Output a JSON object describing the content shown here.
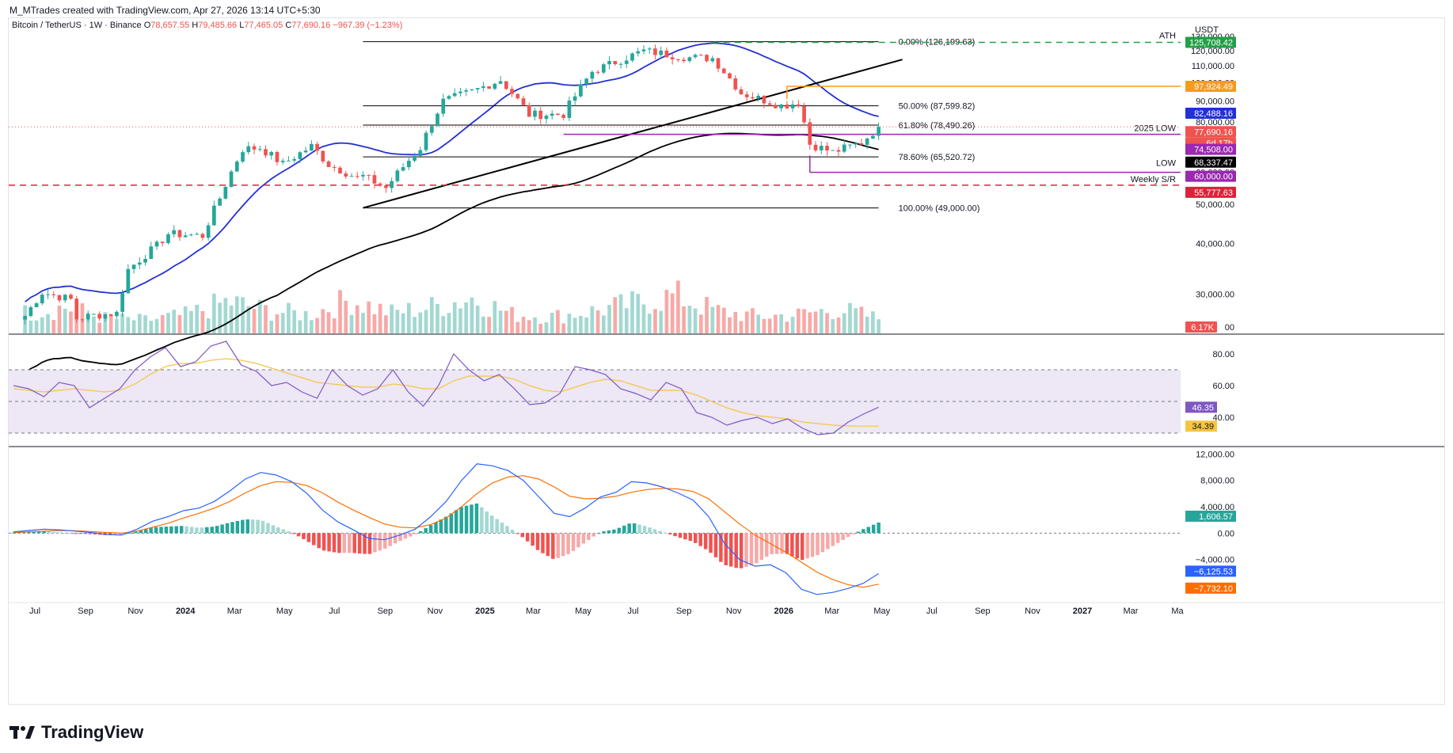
{
  "header": {
    "attribution": "M_MTrades created with TradingView.com, Apr 27, 2026 13:14 UTC+5:30"
  },
  "legend": {
    "symbol": "Bitcoin / TetherUS · 1W · Binance",
    "open_label": "O",
    "open": "78,657.55",
    "high_label": "H",
    "high": "79,485.66",
    "low_label": "L",
    "low": "77,465.05",
    "close_label": "C",
    "close": "77,690.16",
    "change": "−967.39 (−1.23%)"
  },
  "currency": "USDT",
  "footer": {
    "brand": "TradingView"
  },
  "colors": {
    "up": "#26a69a",
    "down": "#ef5350",
    "up_vol": "#a3d8d2",
    "down_vol": "#f7a9a7",
    "ma_blue": "#2330d6",
    "ma_black": "#000000",
    "fib_line": "#000000",
    "ath_line": "#22a046",
    "orange": "#f59c1a",
    "purple": "#9c27b0",
    "weekly_sr": "#e0203a",
    "rsi_line": "#7e57c2",
    "rsi_ma": "#f5c542",
    "rsi_band": "#ede7f6",
    "macd_line": "#2962ff",
    "signal_line": "#ff6d00"
  },
  "chart_data": [
    {
      "type": "candlestick",
      "title": "Bitcoin / TetherUS · 1W · Binance",
      "ylabel": "USDT",
      "y_scale": "log",
      "ylim": [
        24000,
        133000
      ],
      "x_range": [
        "2023-06",
        "2027-04"
      ],
      "x_ticks": [
        "Jul",
        "Sep",
        "Nov",
        "2024",
        "Mar",
        "May",
        "Jul",
        "Sep",
        "Nov",
        "2025",
        "Mar",
        "May",
        "Jul",
        "Sep",
        "Nov",
        "2026",
        "Mar",
        "May",
        "Jul",
        "Sep",
        "Nov",
        "2027",
        "Mar",
        "Ma"
      ],
      "y_ticks": [
        "30,000.00",
        "40,000.00",
        "50,000.00",
        "60,000.00",
        "70,000.00",
        "80,000.00",
        "90,000.00",
        "100,000.00",
        "110,000.00",
        "120,000.00",
        "130,000.00"
      ],
      "price_anchors": [
        {
          "date": "2023-06-19",
          "price": 26500
        },
        {
          "date": "2023-07-10",
          "price": 30300
        },
        {
          "date": "2023-08-14",
          "price": 29100
        },
        {
          "date": "2023-08-21",
          "price": 26100
        },
        {
          "date": "2023-09-11",
          "price": 26600
        },
        {
          "date": "2023-10-09",
          "price": 26900
        },
        {
          "date": "2023-10-23",
          "price": 34500
        },
        {
          "date": "2023-11-27",
          "price": 39500
        },
        {
          "date": "2023-12-11",
          "price": 42300
        },
        {
          "date": "2024-01-22",
          "price": 41800
        },
        {
          "date": "2024-02-12",
          "price": 51800
        },
        {
          "date": "2024-03-11",
          "price": 68500
        },
        {
          "date": "2024-04-01",
          "price": 69000
        },
        {
          "date": "2024-04-29",
          "price": 62900
        },
        {
          "date": "2024-06-03",
          "price": 69600
        },
        {
          "date": "2024-06-24",
          "price": 62700
        },
        {
          "date": "2024-07-29",
          "price": 58100
        },
        {
          "date": "2024-08-05",
          "price": 58700
        },
        {
          "date": "2024-09-02",
          "price": 54900
        },
        {
          "date": "2024-10-14",
          "price": 69000
        },
        {
          "date": "2024-11-11",
          "price": 90000
        },
        {
          "date": "2024-12-16",
          "price": 95000
        },
        {
          "date": "2025-01-20",
          "price": 101500
        },
        {
          "date": "2025-02-24",
          "price": 83300
        },
        {
          "date": "2025-04-07",
          "price": 83500
        },
        {
          "date": "2025-05-12",
          "price": 106400
        },
        {
          "date": "2025-07-14",
          "price": 119800
        },
        {
          "date": "2025-08-11",
          "price": 117400
        },
        {
          "date": "2025-09-08",
          "price": 115300
        },
        {
          "date": "2025-10-06",
          "price": 114900
        },
        {
          "date": "2025-11-10",
          "price": 94200
        },
        {
          "date": "2025-12-29",
          "price": 87700
        },
        {
          "date": "2026-01-19",
          "price": 89200
        },
        {
          "date": "2026-02-02",
          "price": 70500
        },
        {
          "date": "2026-03-02",
          "price": 67300
        },
        {
          "date": "2026-04-06",
          "price": 71000
        },
        {
          "date": "2026-04-27",
          "price": 77690
        }
      ],
      "volume_anchors": [
        0.55,
        0.7,
        0.4,
        0.35,
        0.5,
        0.85,
        0.6,
        0.5,
        0.9,
        0.55,
        0.7,
        0.95,
        0.5,
        0.45,
        0.6,
        0.8,
        1.0,
        0.6,
        0.45,
        0.5,
        0.65,
        0.4
      ],
      "moving_averages": [
        {
          "label": "",
          "value_at_end": 82488.16,
          "color": "#2330d6"
        },
        {
          "label": "",
          "value_at_end": 68337.47,
          "color": "#000000"
        }
      ],
      "fibonacci": [
        {
          "label": "0.00% (126,199.63)",
          "price": 126199.63
        },
        {
          "label": "50.00% (87,599.82)",
          "price": 87599.82
        },
        {
          "label": "61.80% (78,490.26)",
          "price": 78490.26
        },
        {
          "label": "78.60% (65,520.72)",
          "price": 65520.72
        },
        {
          "label": "100.00% (49,000.00)",
          "price": 49000.0
        }
      ],
      "annotations": [
        {
          "label": "ATH",
          "price": 125708.42,
          "tag": "125,708.42"
        },
        {
          "label": "",
          "price": 97924.49,
          "tag": "97,924.49"
        },
        {
          "label": "2025 LOW",
          "price": 74508.0,
          "tag": "74,508.00"
        },
        {
          "label": "LOW",
          "price": 60000.0,
          "tag": "60,000.00"
        },
        {
          "label": "Weekly S/R",
          "price": 55777.63,
          "tag": "55,777.63"
        }
      ],
      "last_price_tag": "77,690.16",
      "countdown": "6d 17h",
      "volume_tag": "6.17K",
      "ma_tags": [
        "82,488.16",
        "68,337.47"
      ],
      "axis_zero_label": "00"
    },
    {
      "type": "line",
      "title": "",
      "ylim": [
        22,
        92
      ],
      "y_ticks": [
        "80.00",
        "60.00",
        "40.00"
      ],
      "upper_band": 70,
      "lower_band": 30,
      "mid_line": 50,
      "rsi_anchors": [
        60,
        58,
        53,
        62,
        60,
        46,
        52,
        58,
        70,
        78,
        84,
        72,
        75,
        85,
        88,
        73,
        69,
        60,
        62,
        56,
        52,
        70,
        60,
        54,
        58,
        70,
        56,
        47,
        60,
        80,
        70,
        63,
        67,
        58,
        48,
        49,
        55,
        72,
        70,
        67,
        58,
        55,
        51,
        62,
        58,
        43,
        40,
        35,
        38,
        40,
        36,
        39,
        33,
        29,
        30,
        37,
        42,
        46.35
      ],
      "rsi_ma_anchors": [
        58,
        57,
        56,
        57,
        58,
        57,
        56,
        57,
        61,
        67,
        72,
        74,
        74,
        76,
        77,
        76,
        74,
        71,
        68,
        65,
        62,
        61,
        60,
        59,
        59,
        61,
        60,
        58,
        58,
        63,
        66,
        66,
        66,
        64,
        60,
        57,
        56,
        59,
        62,
        64,
        63,
        60,
        57,
        57,
        57,
        54,
        50,
        46,
        43,
        41,
        40,
        39,
        37,
        36,
        35,
        34.5,
        34.39,
        34.39
      ],
      "value_tags": [
        "46.35",
        "34.39"
      ]
    },
    {
      "type": "bar",
      "title": "",
      "ylim": [
        -9800,
        13000
      ],
      "y_ticks": [
        "12,000.00",
        "8,000.00",
        "4,000.00",
        "0.00",
        "−4,000.00"
      ],
      "macd_anchors": [
        200,
        400,
        600,
        500,
        300,
        100,
        -200,
        -300,
        600,
        1800,
        2500,
        3400,
        3800,
        4800,
        6400,
        8200,
        9200,
        8800,
        7800,
        6000,
        3500,
        1700,
        500,
        -800,
        -1000,
        -300,
        600,
        2500,
        4800,
        8000,
        10500,
        10200,
        9500,
        8000,
        5500,
        3000,
        2500,
        3800,
        5500,
        6200,
        7800,
        7600,
        7000,
        6100,
        5000,
        2500,
        -1500,
        -4000,
        -5000,
        -4800,
        -6000,
        -8500,
        -9300,
        -9000,
        -8400,
        -7600,
        -6125.53
      ],
      "signal_anchors": [
        100,
        200,
        300,
        400,
        350,
        250,
        100,
        0,
        300,
        900,
        1500,
        2300,
        3000,
        3800,
        4800,
        6100,
        7200,
        7800,
        7700,
        7200,
        6100,
        4700,
        3500,
        2400,
        1400,
        900,
        800,
        1300,
        2300,
        4000,
        6000,
        7600,
        8500,
        8700,
        8200,
        7000,
        5600,
        5200,
        5300,
        5600,
        6200,
        6600,
        6800,
        6700,
        6300,
        5200,
        3300,
        1400,
        -300,
        -1600,
        -2900,
        -4400,
        -5900,
        -7000,
        -7800,
        -8200,
        -7732.1
      ],
      "value_tags": [
        "1,606.57",
        "−6,125.53",
        "−7,732.10"
      ]
    }
  ]
}
